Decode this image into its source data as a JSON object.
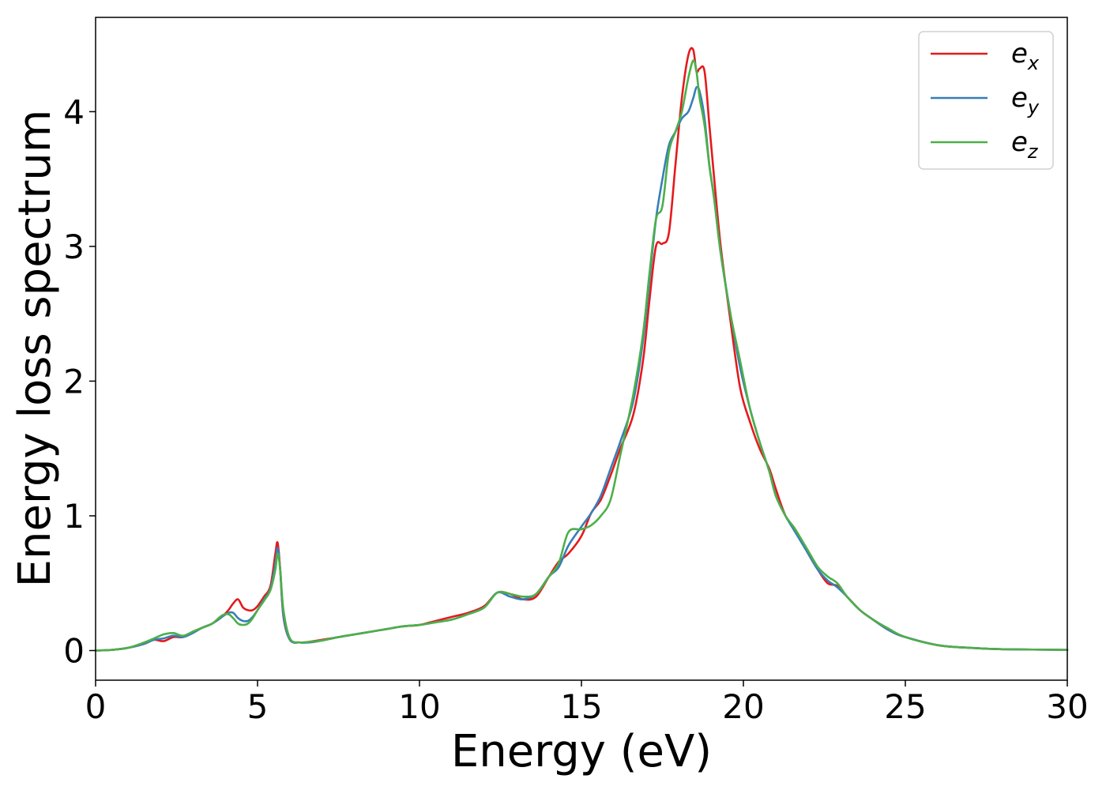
{
  "chart_data": {
    "type": "line",
    "xlabel": "Energy (eV)",
    "ylabel": "Energy loss spectrum",
    "xlim": [
      0,
      30
    ],
    "ylim": [
      -0.22,
      4.7
    ],
    "xticks": [
      0,
      5,
      10,
      15,
      20,
      25,
      30
    ],
    "yticks": [
      0,
      1,
      2,
      3,
      4
    ],
    "grid": false,
    "legend": "top-right",
    "series": [
      {
        "name": "e_x",
        "legend_base": "e",
        "legend_sub": "x",
        "color": "#e41a1c",
        "x": [
          0,
          0.5,
          1,
          1.5,
          1.8,
          2.1,
          2.4,
          2.7,
          3,
          3.3,
          3.6,
          3.9,
          4.1,
          4.25,
          4.4,
          4.55,
          4.7,
          4.85,
          5,
          5.2,
          5.4,
          5.55,
          5.62,
          5.7,
          5.8,
          6,
          6.3,
          6.6,
          7,
          7.5,
          8,
          8.5,
          9,
          9.5,
          10,
          10.5,
          11,
          11.5,
          12,
          12.4,
          12.8,
          13.2,
          13.6,
          14,
          14.3,
          14.6,
          15,
          15.3,
          15.6,
          15.9,
          16.2,
          16.6,
          16.9,
          17.1,
          17.3,
          17.5,
          17.7,
          17.9,
          18.1,
          18.3,
          18.45,
          18.55,
          18.65,
          18.8,
          18.95,
          19.1,
          19.3,
          19.6,
          19.9,
          20.2,
          20.5,
          20.8,
          21,
          21.3,
          21.6,
          22,
          22.3,
          22.6,
          22.9,
          23.2,
          23.6,
          24,
          24.5,
          25,
          26,
          27,
          28,
          30
        ],
        "y": [
          0,
          0.005,
          0.02,
          0.05,
          0.08,
          0.07,
          0.1,
          0.1,
          0.14,
          0.17,
          0.2,
          0.25,
          0.3,
          0.35,
          0.38,
          0.32,
          0.3,
          0.3,
          0.33,
          0.4,
          0.48,
          0.72,
          0.8,
          0.6,
          0.25,
          0.08,
          0.06,
          0.065,
          0.08,
          0.1,
          0.12,
          0.14,
          0.16,
          0.18,
          0.19,
          0.22,
          0.25,
          0.28,
          0.33,
          0.43,
          0.42,
          0.38,
          0.4,
          0.55,
          0.66,
          0.72,
          0.85,
          1.02,
          1.12,
          1.3,
          1.5,
          1.75,
          2.15,
          2.6,
          3.0,
          3.02,
          3.1,
          3.6,
          4.1,
          4.42,
          4.46,
          4.3,
          4.32,
          4.3,
          3.9,
          3.5,
          3.0,
          2.45,
          1.95,
          1.7,
          1.5,
          1.35,
          1.2,
          1.0,
          0.9,
          0.72,
          0.6,
          0.5,
          0.48,
          0.4,
          0.3,
          0.23,
          0.15,
          0.1,
          0.04,
          0.02,
          0.01,
          0.005
        ]
      },
      {
        "name": "e_y",
        "legend_base": "e",
        "legend_sub": "y",
        "color": "#377eb8",
        "x": [
          0,
          0.5,
          1,
          1.5,
          1.8,
          2.1,
          2.4,
          2.7,
          3,
          3.3,
          3.6,
          3.9,
          4.1,
          4.25,
          4.4,
          4.55,
          4.7,
          4.85,
          5,
          5.2,
          5.4,
          5.55,
          5.62,
          5.7,
          5.8,
          6,
          6.3,
          6.6,
          7,
          7.5,
          8,
          8.5,
          9,
          9.5,
          10,
          10.5,
          11,
          11.5,
          12,
          12.4,
          12.8,
          13.2,
          13.6,
          14,
          14.3,
          14.6,
          15,
          15.3,
          15.6,
          15.9,
          16.2,
          16.6,
          16.9,
          17.1,
          17.3,
          17.5,
          17.7,
          17.9,
          18.1,
          18.3,
          18.45,
          18.55,
          18.65,
          18.8,
          18.95,
          19.1,
          19.3,
          19.6,
          19.9,
          20.2,
          20.5,
          20.8,
          21,
          21.3,
          21.6,
          22,
          22.3,
          22.6,
          22.9,
          23.2,
          23.6,
          24,
          24.5,
          25,
          26,
          27,
          28,
          30
        ],
        "y": [
          0,
          0.005,
          0.02,
          0.05,
          0.08,
          0.09,
          0.11,
          0.1,
          0.13,
          0.17,
          0.2,
          0.25,
          0.28,
          0.28,
          0.24,
          0.22,
          0.22,
          0.25,
          0.3,
          0.38,
          0.46,
          0.65,
          0.76,
          0.6,
          0.26,
          0.08,
          0.06,
          0.06,
          0.075,
          0.1,
          0.12,
          0.14,
          0.16,
          0.18,
          0.19,
          0.21,
          0.23,
          0.27,
          0.32,
          0.43,
          0.4,
          0.38,
          0.42,
          0.55,
          0.62,
          0.78,
          0.92,
          1.02,
          1.15,
          1.35,
          1.55,
          1.85,
          2.3,
          2.75,
          3.2,
          3.5,
          3.75,
          3.85,
          3.95,
          4.0,
          4.1,
          4.18,
          4.15,
          3.95,
          3.6,
          3.35,
          2.95,
          2.5,
          2.1,
          1.8,
          1.55,
          1.33,
          1.15,
          1.0,
          0.88,
          0.72,
          0.6,
          0.52,
          0.47,
          0.4,
          0.3,
          0.23,
          0.15,
          0.1,
          0.04,
          0.02,
          0.01,
          0.005
        ]
      },
      {
        "name": "e_z",
        "legend_base": "e",
        "legend_sub": "z",
        "color": "#4daf4a",
        "x": [
          0,
          0.5,
          1,
          1.5,
          1.8,
          2.1,
          2.4,
          2.7,
          3,
          3.3,
          3.6,
          3.9,
          4.1,
          4.25,
          4.4,
          4.55,
          4.7,
          4.85,
          5,
          5.2,
          5.4,
          5.55,
          5.62,
          5.7,
          5.8,
          6,
          6.3,
          6.6,
          7,
          7.5,
          8,
          8.5,
          9,
          9.5,
          10,
          10.5,
          11,
          11.5,
          12,
          12.4,
          12.8,
          13.2,
          13.6,
          14,
          14.3,
          14.6,
          15,
          15.3,
          15.6,
          15.9,
          16.2,
          16.6,
          16.9,
          17.1,
          17.3,
          17.5,
          17.7,
          17.9,
          18.1,
          18.3,
          18.45,
          18.55,
          18.65,
          18.8,
          18.95,
          19.1,
          19.3,
          19.6,
          19.9,
          20.2,
          20.5,
          20.8,
          21,
          21.3,
          21.6,
          22,
          22.3,
          22.6,
          22.9,
          23.2,
          23.6,
          24,
          24.5,
          25,
          26,
          27,
          28,
          30
        ],
        "y": [
          0,
          0.005,
          0.02,
          0.06,
          0.09,
          0.12,
          0.13,
          0.11,
          0.14,
          0.17,
          0.2,
          0.26,
          0.27,
          0.24,
          0.2,
          0.19,
          0.2,
          0.24,
          0.3,
          0.37,
          0.45,
          0.6,
          0.72,
          0.6,
          0.3,
          0.09,
          0.06,
          0.065,
          0.075,
          0.1,
          0.12,
          0.14,
          0.16,
          0.18,
          0.19,
          0.21,
          0.23,
          0.27,
          0.32,
          0.43,
          0.42,
          0.4,
          0.42,
          0.55,
          0.65,
          0.88,
          0.9,
          0.93,
          1.0,
          1.12,
          1.45,
          1.9,
          2.35,
          2.8,
          3.2,
          3.3,
          3.7,
          3.85,
          4.0,
          4.25,
          4.38,
          4.3,
          4.1,
          3.9,
          3.6,
          3.35,
          2.95,
          2.5,
          2.15,
          1.8,
          1.55,
          1.33,
          1.15,
          1.0,
          0.9,
          0.74,
          0.62,
          0.55,
          0.5,
          0.4,
          0.3,
          0.23,
          0.16,
          0.1,
          0.04,
          0.02,
          0.01,
          0.005
        ]
      }
    ]
  }
}
